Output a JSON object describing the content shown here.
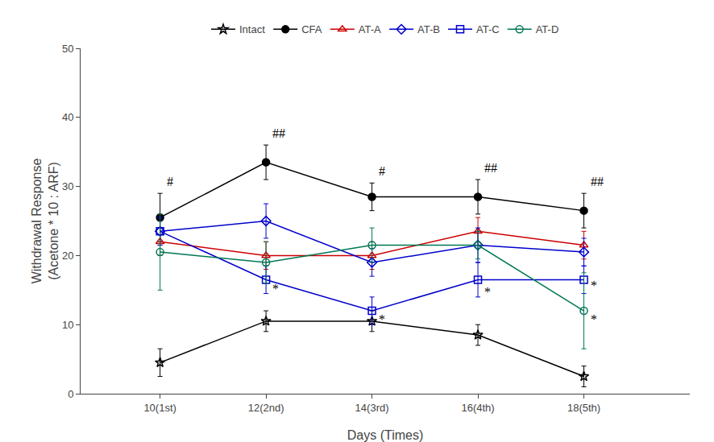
{
  "chart_data": {
    "type": "line",
    "xlabel": "Days (Times)",
    "ylabel": "Withdrawal Response\n(Acetone * 10 : ARF)",
    "x": [
      10,
      12,
      14,
      16,
      18
    ],
    "xlim": [
      8.5,
      20.0
    ],
    "xticks": [
      {
        "value": 10,
        "label": "10(1st)"
      },
      {
        "value": 12,
        "label": "12(2nd)"
      },
      {
        "value": 14,
        "label": "14(3rd)"
      },
      {
        "value": 16,
        "label": "16(4th)"
      },
      {
        "value": 18,
        "label": "18(5th)"
      }
    ],
    "ylim": [
      0,
      50
    ],
    "yticks": [
      0,
      10,
      20,
      30,
      40,
      50
    ],
    "grid": false,
    "legend": "top",
    "series": [
      {
        "name": "Intact",
        "color": "black",
        "marker": "star-open",
        "line_style": "solid",
        "values": [
          4.5,
          10.5,
          10.5,
          8.5,
          2.5
        ],
        "errors": [
          2.0,
          1.5,
          1.5,
          1.5,
          1.5
        ]
      },
      {
        "name": "CFA",
        "color": "black",
        "marker": "circle",
        "line_style": "solid",
        "values": [
          25.5,
          33.5,
          28.5,
          28.5,
          26.5
        ],
        "errors": [
          3.5,
          2.5,
          2.0,
          2.5,
          2.5
        ]
      },
      {
        "name": "AT-A",
        "color": "#cc0000",
        "marker": "triangle-up-open",
        "line_style": "solid",
        "values": [
          22.0,
          20.0,
          20.0,
          23.5,
          21.5
        ],
        "errors": [
          2.0,
          2.0,
          2.0,
          2.0,
          2.0
        ]
      },
      {
        "name": "AT-B",
        "color": "#0000cc",
        "marker": "diamond-open",
        "line_style": "solid",
        "values": [
          23.5,
          25.0,
          19.0,
          21.5,
          20.5
        ],
        "errors": [
          2.0,
          2.5,
          2.0,
          2.5,
          2.0
        ]
      },
      {
        "name": "AT-C",
        "color": "#0000cc",
        "marker": "square-open",
        "line_style": "solid",
        "values": [
          23.5,
          16.5,
          12.0,
          16.5,
          16.5
        ],
        "errors": [
          2.0,
          2.0,
          2.0,
          2.5,
          2.0
        ]
      },
      {
        "name": "AT-D",
        "color": "#007755",
        "marker": "circle-open",
        "line_style": "solid",
        "values": [
          20.5,
          19.0,
          21.5,
          21.5,
          12.0
        ],
        "errors": [
          5.5,
          3.0,
          2.5,
          2.0,
          5.5
        ]
      }
    ],
    "annotations": [
      {
        "x": 10,
        "y": 29.5,
        "text": "#"
      },
      {
        "x": 12,
        "y": 36.5,
        "text": "##"
      },
      {
        "x": 14,
        "y": 31.0,
        "text": "#"
      },
      {
        "x": 16,
        "y": 31.5,
        "text": "##"
      },
      {
        "x": 18,
        "y": 29.5,
        "text": "##"
      },
      {
        "x": 12,
        "y": 14.0,
        "text": "*"
      },
      {
        "x": 14,
        "y": 9.5,
        "text": "*"
      },
      {
        "x": 16,
        "y": 13.5,
        "text": "*"
      },
      {
        "x": 18,
        "y": 14.5,
        "text": "*"
      },
      {
        "x": 18,
        "y": 9.5,
        "text": "*"
      }
    ]
  }
}
